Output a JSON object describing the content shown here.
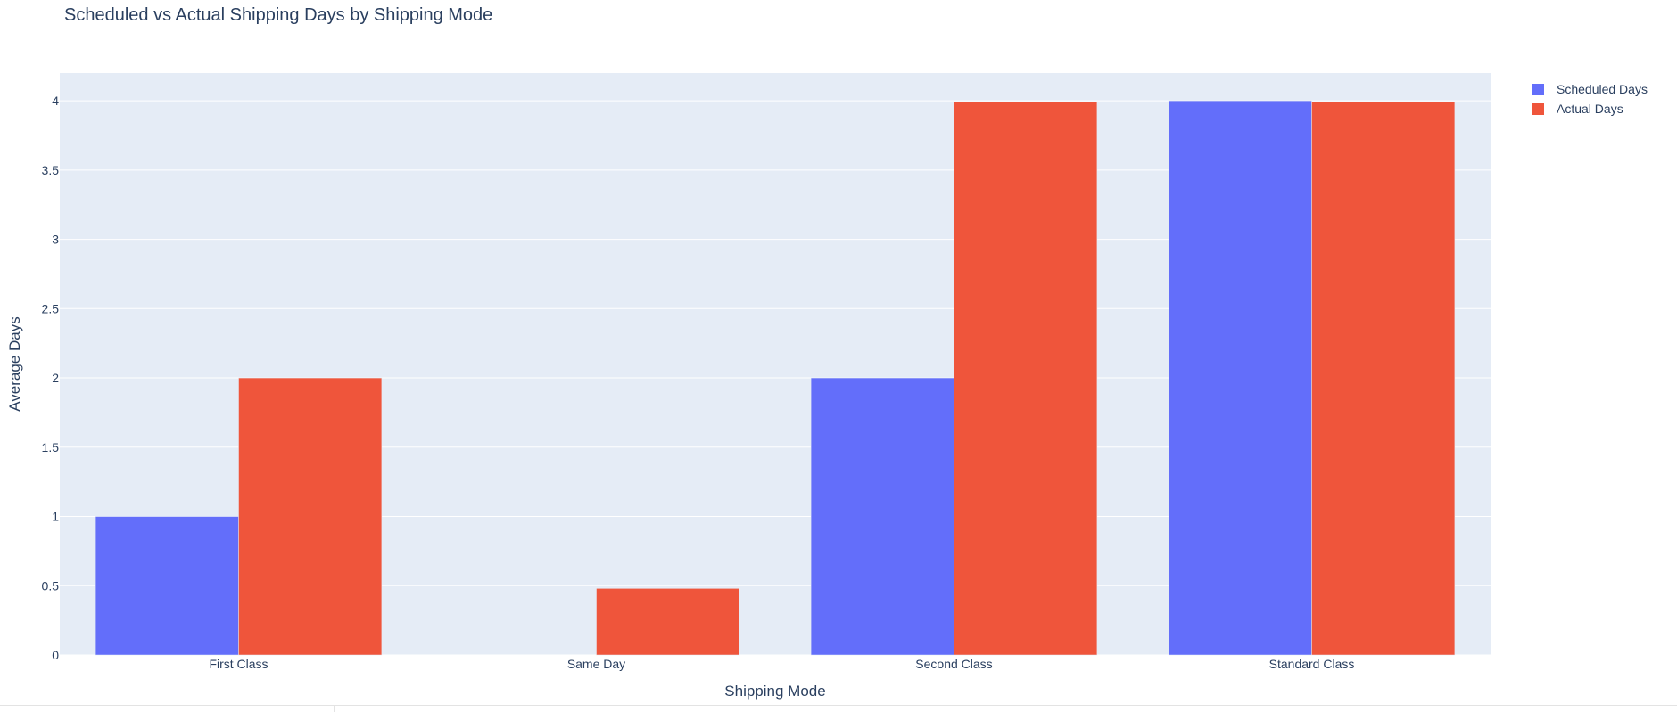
{
  "chart_data": {
    "type": "bar",
    "title": "Scheduled vs Actual Shipping Days by Shipping Mode",
    "xlabel": "Shipping Mode",
    "ylabel": "Average Days",
    "categories": [
      "First Class",
      "Same Day",
      "Second Class",
      "Standard Class"
    ],
    "series": [
      {
        "name": "Scheduled Days",
        "color": "#636efa",
        "values": [
          1,
          0,
          2,
          4
        ]
      },
      {
        "name": "Actual Days",
        "color": "#ef553b",
        "values": [
          2,
          0.48,
          3.99,
          3.99
        ]
      }
    ],
    "ylim": [
      0,
      4.2
    ],
    "yticks": [
      0,
      0.5,
      1,
      1.5,
      2,
      2.5,
      3,
      3.5,
      4
    ],
    "ytick_labels": [
      "0",
      "0.5",
      "1",
      "1.5",
      "2",
      "2.5",
      "3",
      "3.5",
      "4"
    ],
    "grid": true,
    "legend_position": "top-right",
    "plot_background": "#e5ecf6",
    "grid_color": "#ffffff",
    "text_color": "#2a3f5f"
  }
}
